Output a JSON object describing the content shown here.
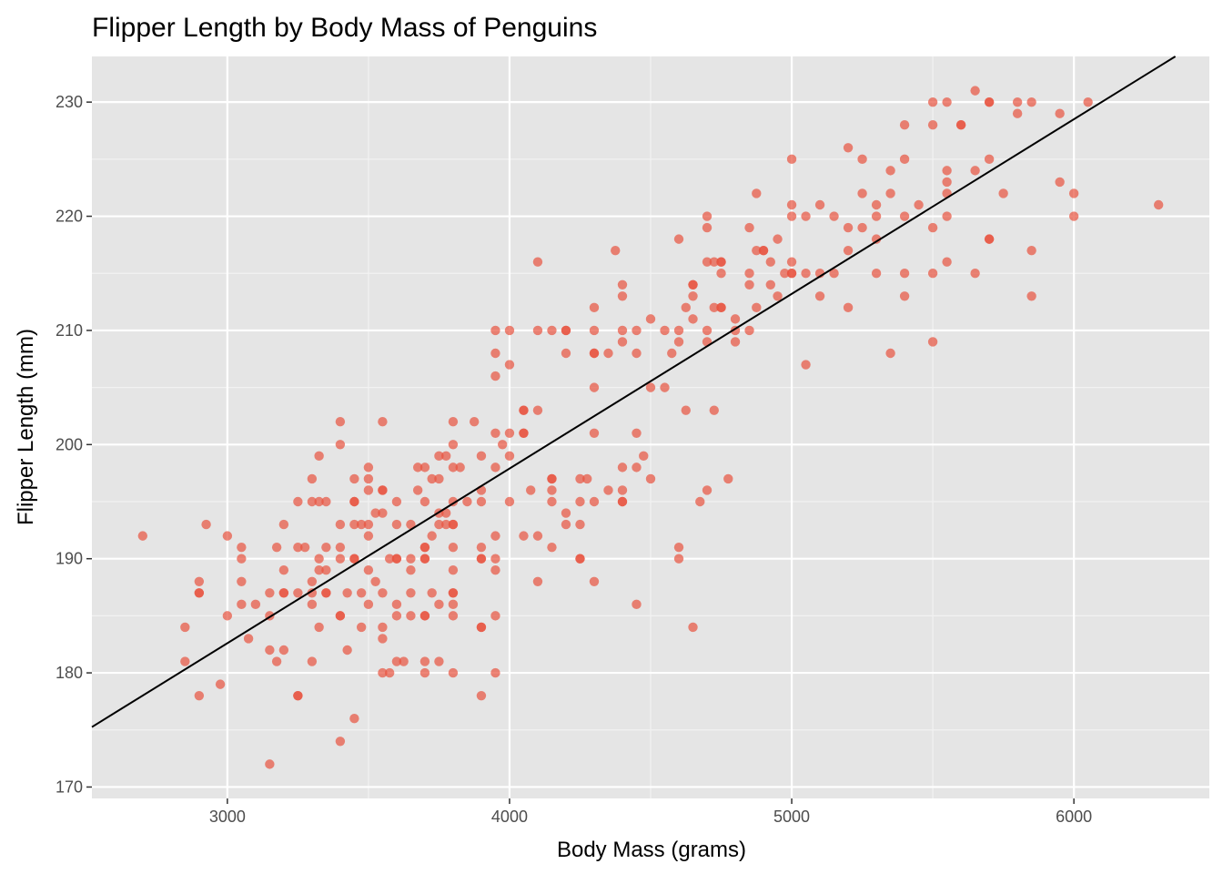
{
  "chart_data": {
    "type": "scatter",
    "title": "Flipper Length by Body Mass of Penguins",
    "xlabel": "Body Mass (grams)",
    "ylabel": "Flipper Length (mm)",
    "xlim": [
      2520,
      6480
    ],
    "ylim": [
      169,
      234
    ],
    "xticks": [
      3000,
      4000,
      5000,
      6000
    ],
    "yticks": [
      170,
      180,
      190,
      200,
      210,
      220,
      230
    ],
    "grid": true,
    "point_color": "#e8533f",
    "panel_color": "#e5e5e5",
    "trendline": {
      "type": "linear",
      "slope": 0.0153,
      "intercept": 136.7,
      "color": "#000000"
    },
    "points": [
      [
        2700,
        192
      ],
      [
        2850,
        184
      ],
      [
        2850,
        181
      ],
      [
        2900,
        188
      ],
      [
        2900,
        187
      ],
      [
        2900,
        187
      ],
      [
        2900,
        178
      ],
      [
        2925,
        193
      ],
      [
        2975,
        179
      ],
      [
        3000,
        192
      ],
      [
        3000,
        185
      ],
      [
        3050,
        191
      ],
      [
        3050,
        190
      ],
      [
        3050,
        188
      ],
      [
        3050,
        186
      ],
      [
        3075,
        183
      ],
      [
        3100,
        186
      ],
      [
        3150,
        187
      ],
      [
        3150,
        185
      ],
      [
        3150,
        182
      ],
      [
        3150,
        172
      ],
      [
        3175,
        191
      ],
      [
        3175,
        181
      ],
      [
        3200,
        193
      ],
      [
        3200,
        189
      ],
      [
        3200,
        187
      ],
      [
        3200,
        187
      ],
      [
        3200,
        182
      ],
      [
        3250,
        195
      ],
      [
        3250,
        191
      ],
      [
        3250,
        187
      ],
      [
        3250,
        178
      ],
      [
        3250,
        178
      ],
      [
        3275,
        191
      ],
      [
        3300,
        197
      ],
      [
        3300,
        195
      ],
      [
        3300,
        188
      ],
      [
        3300,
        187
      ],
      [
        3300,
        186
      ],
      [
        3300,
        181
      ],
      [
        3325,
        199
      ],
      [
        3325,
        195
      ],
      [
        3325,
        190
      ],
      [
        3325,
        189
      ],
      [
        3325,
        184
      ],
      [
        3350,
        195
      ],
      [
        3350,
        191
      ],
      [
        3350,
        189
      ],
      [
        3350,
        187
      ],
      [
        3350,
        187
      ],
      [
        3400,
        202
      ],
      [
        3400,
        200
      ],
      [
        3400,
        193
      ],
      [
        3400,
        191
      ],
      [
        3400,
        190
      ],
      [
        3400,
        185
      ],
      [
        3400,
        185
      ],
      [
        3400,
        174
      ],
      [
        3425,
        187
      ],
      [
        3425,
        182
      ],
      [
        3450,
        197
      ],
      [
        3450,
        195
      ],
      [
        3450,
        195
      ],
      [
        3450,
        193
      ],
      [
        3450,
        190
      ],
      [
        3450,
        190
      ],
      [
        3450,
        176
      ],
      [
        3475,
        193
      ],
      [
        3475,
        187
      ],
      [
        3475,
        184
      ],
      [
        3500,
        198
      ],
      [
        3500,
        197
      ],
      [
        3500,
        196
      ],
      [
        3500,
        193
      ],
      [
        3500,
        192
      ],
      [
        3500,
        189
      ],
      [
        3500,
        186
      ],
      [
        3525,
        194
      ],
      [
        3525,
        188
      ],
      [
        3550,
        202
      ],
      [
        3550,
        196
      ],
      [
        3550,
        196
      ],
      [
        3550,
        194
      ],
      [
        3550,
        187
      ],
      [
        3550,
        184
      ],
      [
        3550,
        183
      ],
      [
        3550,
        180
      ],
      [
        3575,
        190
      ],
      [
        3575,
        180
      ],
      [
        3600,
        195
      ],
      [
        3600,
        193
      ],
      [
        3600,
        190
      ],
      [
        3600,
        190
      ],
      [
        3600,
        186
      ],
      [
        3600,
        185
      ],
      [
        3600,
        181
      ],
      [
        3625,
        181
      ],
      [
        3650,
        193
      ],
      [
        3650,
        190
      ],
      [
        3650,
        189
      ],
      [
        3650,
        187
      ],
      [
        3650,
        185
      ],
      [
        3675,
        198
      ],
      [
        3675,
        196
      ],
      [
        3700,
        198
      ],
      [
        3700,
        195
      ],
      [
        3700,
        191
      ],
      [
        3700,
        191
      ],
      [
        3700,
        190
      ],
      [
        3700,
        190
      ],
      [
        3700,
        185
      ],
      [
        3700,
        185
      ],
      [
        3700,
        181
      ],
      [
        3700,
        180
      ],
      [
        3725,
        197
      ],
      [
        3725,
        192
      ],
      [
        3725,
        187
      ],
      [
        3750,
        199
      ],
      [
        3750,
        197
      ],
      [
        3750,
        194
      ],
      [
        3750,
        193
      ],
      [
        3750,
        186
      ],
      [
        3750,
        181
      ],
      [
        3775,
        199
      ],
      [
        3775,
        194
      ],
      [
        3775,
        193
      ],
      [
        3800,
        202
      ],
      [
        3800,
        200
      ],
      [
        3800,
        198
      ],
      [
        3800,
        195
      ],
      [
        3800,
        193
      ],
      [
        3800,
        193
      ],
      [
        3800,
        191
      ],
      [
        3800,
        189
      ],
      [
        3800,
        187
      ],
      [
        3800,
        187
      ],
      [
        3800,
        186
      ],
      [
        3800,
        185
      ],
      [
        3800,
        180
      ],
      [
        3825,
        198
      ],
      [
        3850,
        195
      ],
      [
        3875,
        202
      ],
      [
        3900,
        199
      ],
      [
        3900,
        196
      ],
      [
        3900,
        195
      ],
      [
        3900,
        191
      ],
      [
        3900,
        190
      ],
      [
        3900,
        190
      ],
      [
        3900,
        184
      ],
      [
        3900,
        184
      ],
      [
        3900,
        178
      ],
      [
        3950,
        210
      ],
      [
        3950,
        208
      ],
      [
        3950,
        206
      ],
      [
        3950,
        201
      ],
      [
        3950,
        198
      ],
      [
        3950,
        192
      ],
      [
        3950,
        190
      ],
      [
        3950,
        189
      ],
      [
        3950,
        185
      ],
      [
        3950,
        180
      ],
      [
        3975,
        200
      ],
      [
        4000,
        210
      ],
      [
        4000,
        207
      ],
      [
        4000,
        201
      ],
      [
        4000,
        199
      ],
      [
        4000,
        195
      ],
      [
        4050,
        203
      ],
      [
        4050,
        203
      ],
      [
        4050,
        201
      ],
      [
        4050,
        201
      ],
      [
        4050,
        192
      ],
      [
        4075,
        196
      ],
      [
        4100,
        216
      ],
      [
        4100,
        210
      ],
      [
        4100,
        203
      ],
      [
        4100,
        192
      ],
      [
        4100,
        188
      ],
      [
        4150,
        210
      ],
      [
        4150,
        197
      ],
      [
        4150,
        197
      ],
      [
        4150,
        196
      ],
      [
        4150,
        195
      ],
      [
        4150,
        191
      ],
      [
        4200,
        210
      ],
      [
        4200,
        210
      ],
      [
        4200,
        208
      ],
      [
        4200,
        194
      ],
      [
        4200,
        193
      ],
      [
        4250,
        197
      ],
      [
        4250,
        195
      ],
      [
        4250,
        193
      ],
      [
        4250,
        190
      ],
      [
        4250,
        190
      ],
      [
        4275,
        197
      ],
      [
        4300,
        212
      ],
      [
        4300,
        210
      ],
      [
        4300,
        208
      ],
      [
        4300,
        208
      ],
      [
        4300,
        205
      ],
      [
        4300,
        201
      ],
      [
        4300,
        195
      ],
      [
        4300,
        188
      ],
      [
        4350,
        208
      ],
      [
        4350,
        196
      ],
      [
        4375,
        217
      ],
      [
        4400,
        214
      ],
      [
        4400,
        213
      ],
      [
        4400,
        210
      ],
      [
        4400,
        209
      ],
      [
        4400,
        198
      ],
      [
        4400,
        196
      ],
      [
        4400,
        195
      ],
      [
        4400,
        195
      ],
      [
        4450,
        210
      ],
      [
        4450,
        208
      ],
      [
        4450,
        201
      ],
      [
        4450,
        198
      ],
      [
        4450,
        186
      ],
      [
        4475,
        199
      ],
      [
        4500,
        211
      ],
      [
        4500,
        205
      ],
      [
        4500,
        197
      ],
      [
        4550,
        210
      ],
      [
        4550,
        205
      ],
      [
        4575,
        208
      ],
      [
        4600,
        218
      ],
      [
        4600,
        210
      ],
      [
        4600,
        209
      ],
      [
        4600,
        191
      ],
      [
        4600,
        190
      ],
      [
        4625,
        212
      ],
      [
        4625,
        203
      ],
      [
        4650,
        214
      ],
      [
        4650,
        214
      ],
      [
        4650,
        213
      ],
      [
        4650,
        211
      ],
      [
        4650,
        184
      ],
      [
        4675,
        195
      ],
      [
        4700,
        220
      ],
      [
        4700,
        219
      ],
      [
        4700,
        216
      ],
      [
        4700,
        210
      ],
      [
        4700,
        209
      ],
      [
        4700,
        196
      ],
      [
        4725,
        216
      ],
      [
        4725,
        212
      ],
      [
        4725,
        203
      ],
      [
        4750,
        216
      ],
      [
        4750,
        216
      ],
      [
        4750,
        215
      ],
      [
        4750,
        212
      ],
      [
        4750,
        212
      ],
      [
        4775,
        197
      ],
      [
        4800,
        211
      ],
      [
        4800,
        210
      ],
      [
        4800,
        209
      ],
      [
        4850,
        219
      ],
      [
        4850,
        215
      ],
      [
        4850,
        214
      ],
      [
        4850,
        210
      ],
      [
        4875,
        222
      ],
      [
        4875,
        217
      ],
      [
        4875,
        212
      ],
      [
        4900,
        217
      ],
      [
        4900,
        217
      ],
      [
        4925,
        216
      ],
      [
        4925,
        214
      ],
      [
        4950,
        218
      ],
      [
        4950,
        213
      ],
      [
        4975,
        215
      ],
      [
        5000,
        225
      ],
      [
        5000,
        221
      ],
      [
        5000,
        220
      ],
      [
        5000,
        216
      ],
      [
        5000,
        215
      ],
      [
        5000,
        215
      ],
      [
        5050,
        220
      ],
      [
        5050,
        215
      ],
      [
        5050,
        207
      ],
      [
        5100,
        221
      ],
      [
        5100,
        215
      ],
      [
        5100,
        213
      ],
      [
        5150,
        220
      ],
      [
        5150,
        215
      ],
      [
        5200,
        226
      ],
      [
        5200,
        219
      ],
      [
        5200,
        217
      ],
      [
        5200,
        212
      ],
      [
        5250,
        225
      ],
      [
        5250,
        222
      ],
      [
        5250,
        219
      ],
      [
        5300,
        221
      ],
      [
        5300,
        220
      ],
      [
        5300,
        218
      ],
      [
        5300,
        215
      ],
      [
        5350,
        224
      ],
      [
        5350,
        222
      ],
      [
        5350,
        208
      ],
      [
        5400,
        228
      ],
      [
        5400,
        225
      ],
      [
        5400,
        220
      ],
      [
        5400,
        215
      ],
      [
        5400,
        213
      ],
      [
        5450,
        221
      ],
      [
        5500,
        230
      ],
      [
        5500,
        228
      ],
      [
        5500,
        219
      ],
      [
        5500,
        215
      ],
      [
        5500,
        209
      ],
      [
        5550,
        230
      ],
      [
        5550,
        224
      ],
      [
        5550,
        223
      ],
      [
        5550,
        222
      ],
      [
        5550,
        220
      ],
      [
        5550,
        216
      ],
      [
        5600,
        228
      ],
      [
        5600,
        228
      ],
      [
        5650,
        231
      ],
      [
        5650,
        224
      ],
      [
        5650,
        215
      ],
      [
        5700,
        230
      ],
      [
        5700,
        230
      ],
      [
        5700,
        225
      ],
      [
        5700,
        218
      ],
      [
        5700,
        218
      ],
      [
        5750,
        222
      ],
      [
        5800,
        230
      ],
      [
        5800,
        229
      ],
      [
        5850,
        230
      ],
      [
        5850,
        217
      ],
      [
        5850,
        213
      ],
      [
        5950,
        229
      ],
      [
        5950,
        223
      ],
      [
        6000,
        222
      ],
      [
        6000,
        220
      ],
      [
        6050,
        230
      ],
      [
        6300,
        221
      ]
    ]
  }
}
